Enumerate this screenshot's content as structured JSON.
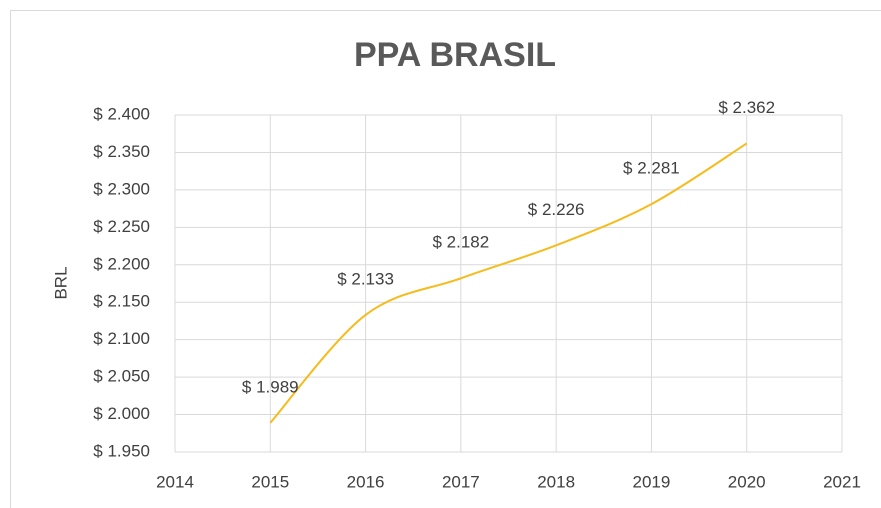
{
  "chart_data": {
    "type": "line",
    "title": "PPA BRASIL",
    "y_label": "BRL",
    "x": [
      2015,
      2016,
      2017,
      2018,
      2019,
      2020
    ],
    "series": [
      {
        "name": "PPA BRASIL",
        "color": "#f6bb1d",
        "values": [
          1.989,
          2.133,
          2.182,
          2.226,
          2.281,
          2.362
        ],
        "value_labels": [
          "$ 1.989",
          "$ 2.133",
          "$ 2.182",
          "$ 2.226",
          "$ 2.281",
          "$ 2.362"
        ]
      }
    ],
    "xlim": [
      2014,
      2021
    ],
    "xticks": [
      2014,
      2015,
      2016,
      2017,
      2018,
      2019,
      2020,
      2021
    ],
    "ylim": [
      1.95,
      2.4
    ],
    "yticks": [
      {
        "value": 1.95,
        "label": "$ 1.950"
      },
      {
        "value": 2.0,
        "label": "$ 2.000"
      },
      {
        "value": 2.05,
        "label": "$ 2.050"
      },
      {
        "value": 2.1,
        "label": "$ 2.100"
      },
      {
        "value": 2.15,
        "label": "$ 2.150"
      },
      {
        "value": 2.2,
        "label": "$ 2.200"
      },
      {
        "value": 2.25,
        "label": "$ 2.250"
      },
      {
        "value": 2.3,
        "label": "$ 2.300"
      },
      {
        "value": 2.35,
        "label": "$ 2.350"
      },
      {
        "value": 2.4,
        "label": "$ 2.400"
      }
    ],
    "grid": true
  }
}
